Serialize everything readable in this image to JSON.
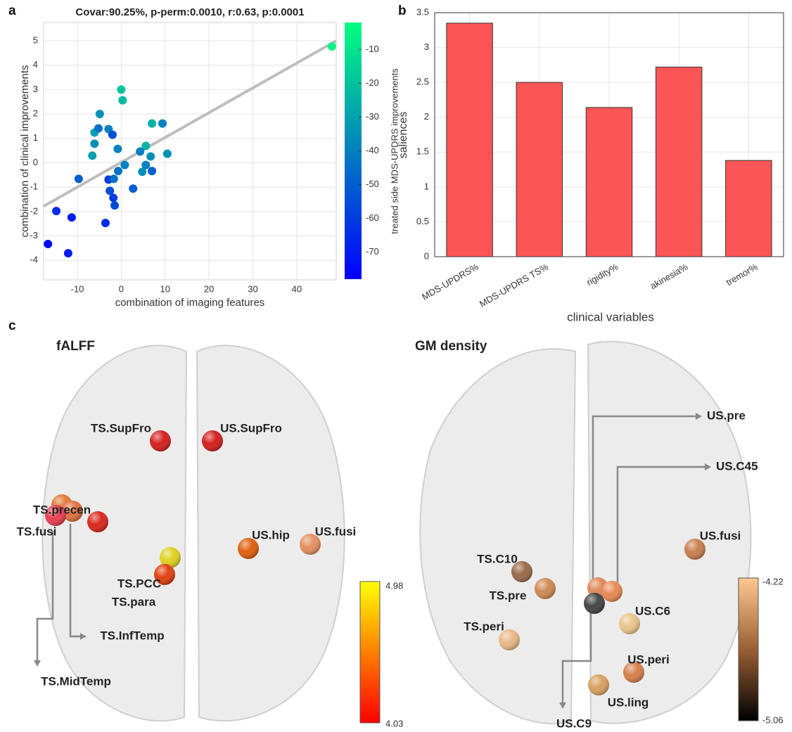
{
  "panel_labels": [
    "a",
    "b",
    "c"
  ],
  "chart_data": [
    {
      "type": "scatter",
      "title": "Covar:90.25%, p-perm:0.0010, r:0.63, p:0.0001",
      "xlabel": "combination of imaging features",
      "ylabel": "combination of clinical improvements",
      "x": [
        48,
        0,
        0.3,
        -4.9,
        -6.1,
        -5.2,
        -2.9,
        -2,
        -6.1,
        -6.6,
        7,
        9.4,
        10.5,
        5.6,
        4.3,
        6.7,
        -0.8,
        0.8,
        -0.7,
        5.6,
        4.8,
        7,
        -9.7,
        -2.9,
        -1.7,
        -2.6,
        2.7,
        -1.8,
        -1.5,
        -14.8,
        -11.3,
        -3.6,
        -16.7,
        -12.1
      ],
      "y": [
        4.77,
        3.0,
        2.56,
        2.0,
        1.24,
        1.41,
        1.38,
        1.15,
        0.78,
        0.29,
        1.61,
        1.61,
        0.37,
        0.69,
        0.46,
        0.26,
        0.57,
        -0.09,
        -0.34,
        -0.09,
        -0.37,
        -0.34,
        -0.66,
        -0.69,
        -0.66,
        -1.15,
        -1.06,
        -1.44,
        -1.75,
        -1.98,
        -2.24,
        -2.47,
        -3.33,
        -3.71
      ],
      "color_values": [
        -5,
        -20,
        -22,
        -35,
        -30,
        -45,
        -40,
        -55,
        -35,
        -30,
        -25,
        -40,
        -35,
        -25,
        -40,
        -35,
        -40,
        -40,
        -45,
        -40,
        -35,
        -50,
        -50,
        -60,
        -45,
        -55,
        -50,
        -60,
        -55,
        -65,
        -70,
        -65,
        -75,
        -70
      ],
      "fit_line": {
        "x": [
          -17.7,
          49
        ],
        "y": [
          -1.78,
          5.0
        ],
        "color": "#bdbdbd"
      },
      "xlim": [
        -17.7,
        49
      ],
      "ylim": [
        -4.8,
        5.75
      ],
      "xticks": [
        -10,
        0,
        10,
        20,
        30,
        40
      ],
      "yticks": [
        -4,
        -3,
        -2,
        -1,
        0,
        1,
        2,
        3,
        4,
        5
      ],
      "grid": true,
      "colorbar": {
        "label": "treated side MDS-UPDRS improvements",
        "lim": [
          -78,
          -2
        ],
        "ticks": [
          -70,
          -60,
          -50,
          -40,
          -30,
          -20,
          -10
        ],
        "colors": [
          "#0000ff",
          "#00ff80"
        ]
      }
    },
    {
      "type": "bar",
      "xlabel": "clinical variables",
      "ylabel": "saliences",
      "categories": [
        "MDS-UPDRS%",
        "MDS-UPDRS TS%",
        "rigidity%",
        "akinesia%",
        "tremor%"
      ],
      "values": [
        3.35,
        2.5,
        2.14,
        2.72,
        1.38
      ],
      "color": "#fb5555",
      "ylim": [
        0,
        3.5
      ],
      "yticks": [
        0,
        0.5,
        1,
        1.5,
        2,
        2.5,
        3,
        3.5
      ],
      "grid": true
    }
  ],
  "panel_c": {
    "left": {
      "title": "fALFF",
      "labels": [
        "TS.SupFro",
        "US.SupFro",
        "TS.precen",
        "TS.fusi",
        "TS.PCC",
        "TS.para",
        "US.hip",
        "US.fusi",
        "TS.InfTemp",
        "TS.MidTemp"
      ],
      "colorbar": {
        "max": 4.98,
        "min": 4.03
      }
    },
    "right": {
      "title": "GM  density",
      "labels": [
        "US.pre",
        "US.C45",
        "US.fusi",
        "TS.C10",
        "TS.pre",
        "TS.peri",
        "US.C6",
        "US.peri",
        "US.ling",
        "US.C9"
      ],
      "colorbar": {
        "max": -4.22,
        "min": -5.06
      }
    }
  }
}
